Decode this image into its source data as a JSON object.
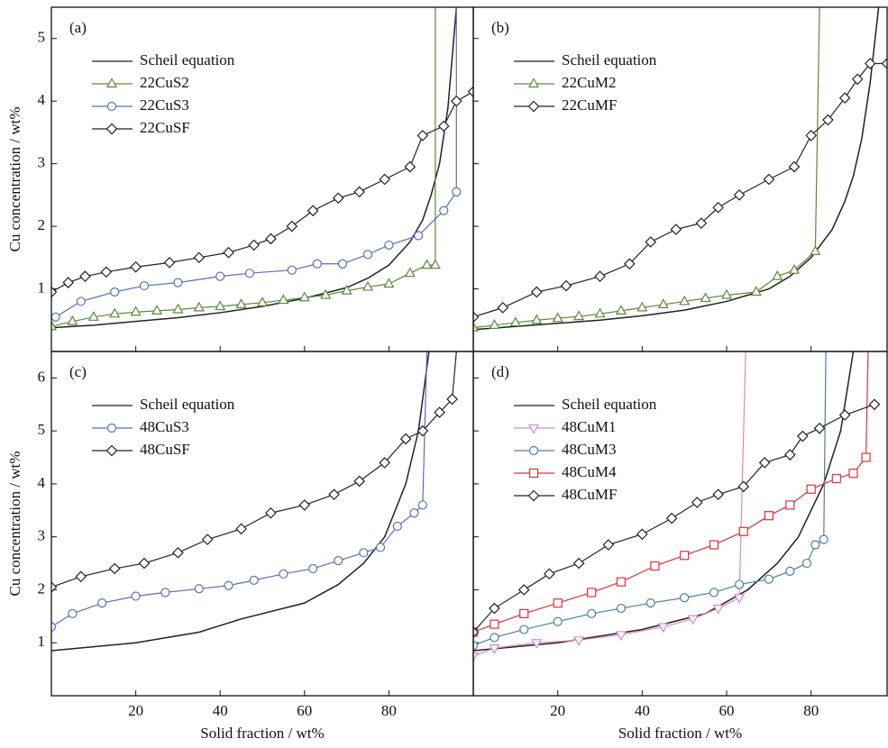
{
  "chart_data": [
    {
      "type": "line",
      "label": "(a)",
      "ylabel": "Cu concentration / wt%",
      "xlim": [
        0,
        100
      ],
      "ylim": [
        0,
        5.5
      ],
      "xticks": [
        20,
        40,
        60,
        80
      ],
      "yticks": [
        1,
        2,
        3,
        4,
        5
      ],
      "series": [
        {
          "name": "Scheil equation",
          "color": "#222222",
          "x": [
            0,
            10,
            20,
            30,
            40,
            50,
            60,
            70,
            75,
            80,
            85,
            88,
            90,
            92,
            94,
            95,
            96
          ],
          "values": [
            0.38,
            0.42,
            0.48,
            0.54,
            0.62,
            0.72,
            0.85,
            1.02,
            1.17,
            1.38,
            1.75,
            2.1,
            2.5,
            3.0,
            3.9,
            4.7,
            5.5
          ]
        },
        {
          "name": "22CuS2",
          "color": "#5a8a3a",
          "marker": "triangle",
          "x": [
            0,
            5,
            10,
            15,
            20,
            25,
            30,
            35,
            40,
            45,
            50,
            55,
            60,
            65,
            70,
            75,
            80,
            85,
            89,
            91,
            91
          ],
          "values": [
            0.4,
            0.48,
            0.55,
            0.6,
            0.63,
            0.65,
            0.67,
            0.7,
            0.72,
            0.75,
            0.78,
            0.82,
            0.86,
            0.9,
            0.97,
            1.03,
            1.08,
            1.25,
            1.38,
            1.38,
            5.5
          ]
        },
        {
          "name": "22CuS3",
          "color": "#5b6fb5",
          "marker": "circle",
          "x": [
            1,
            7,
            15,
            22,
            30,
            40,
            47,
            57,
            63,
            69,
            75,
            80,
            87,
            93,
            96,
            96
          ],
          "values": [
            0.55,
            0.8,
            0.95,
            1.05,
            1.1,
            1.2,
            1.25,
            1.3,
            1.4,
            1.4,
            1.55,
            1.7,
            1.85,
            2.25,
            2.55,
            5.5
          ]
        },
        {
          "name": "22CuSF",
          "color": "#222222",
          "marker": "diamond",
          "x": [
            0,
            4,
            8,
            13,
            20,
            28,
            35,
            42,
            48,
            52,
            57,
            62,
            68,
            73,
            79,
            85,
            88,
            93,
            96,
            100
          ],
          "values": [
            0.95,
            1.1,
            1.2,
            1.27,
            1.35,
            1.42,
            1.5,
            1.58,
            1.7,
            1.8,
            2.0,
            2.25,
            2.45,
            2.55,
            2.75,
            2.95,
            3.45,
            3.6,
            4.0,
            4.15
          ]
        }
      ]
    },
    {
      "type": "line",
      "label": "(b)",
      "xlim": [
        0,
        98
      ],
      "ylim": [
        0,
        5.5
      ],
      "xticks": [
        20,
        40,
        60,
        80
      ],
      "yticks": [
        1,
        2,
        3,
        4,
        5
      ],
      "series": [
        {
          "name": "Scheil equation",
          "color": "#222222",
          "x": [
            0,
            10,
            20,
            30,
            40,
            50,
            60,
            65,
            70,
            75,
            80,
            85,
            88,
            90,
            92,
            94,
            96
          ],
          "values": [
            0.35,
            0.4,
            0.45,
            0.5,
            0.57,
            0.66,
            0.8,
            0.9,
            1.0,
            1.2,
            1.5,
            1.95,
            2.4,
            2.8,
            3.4,
            4.3,
            5.5
          ]
        },
        {
          "name": "22CuM2",
          "color": "#5a8a3a",
          "marker": "triangle",
          "x": [
            0,
            5,
            10,
            15,
            20,
            25,
            30,
            35,
            40,
            45,
            50,
            55,
            60,
            67,
            72,
            76,
            81,
            82
          ],
          "values": [
            0.38,
            0.42,
            0.46,
            0.5,
            0.53,
            0.56,
            0.6,
            0.65,
            0.7,
            0.75,
            0.8,
            0.85,
            0.9,
            0.95,
            1.2,
            1.3,
            1.6,
            5.5
          ]
        },
        {
          "name": "22CuMF",
          "color": "#222222",
          "marker": "diamond",
          "x": [
            0,
            7,
            15,
            22,
            30,
            37,
            42,
            48,
            54,
            58,
            63,
            70,
            76,
            80,
            84,
            88,
            91,
            94,
            98
          ],
          "values": [
            0.55,
            0.7,
            0.95,
            1.05,
            1.2,
            1.4,
            1.75,
            1.95,
            2.05,
            2.3,
            2.5,
            2.75,
            2.95,
            3.45,
            3.7,
            4.05,
            4.35,
            4.6,
            4.6
          ]
        }
      ]
    },
    {
      "type": "line",
      "label": "(c)",
      "ylabel": "Cu concentration / wt%",
      "xlabel": "Solid fraction / wt%",
      "xlim": [
        0,
        100
      ],
      "ylim": [
        0,
        6.5
      ],
      "xticks": [
        20,
        40,
        60,
        80
      ],
      "yticks": [
        1,
        2,
        3,
        4,
        5,
        6
      ],
      "series": [
        {
          "name": "Scheil equation",
          "color": "#222222",
          "x": [
            0,
            20,
            35,
            45,
            60,
            68,
            74,
            79,
            84,
            87,
            89.5
          ],
          "values": [
            0.85,
            1.0,
            1.2,
            1.45,
            1.75,
            2.1,
            2.5,
            3.0,
            4.0,
            5.0,
            6.5
          ]
        },
        {
          "name": "48CuS3",
          "color": "#5b6fb5",
          "marker": "circle",
          "x": [
            0,
            5,
            12,
            20,
            27,
            35,
            42,
            48,
            55,
            62,
            68,
            74,
            78,
            82,
            86,
            88,
            89
          ],
          "values": [
            1.3,
            1.55,
            1.75,
            1.88,
            1.95,
            2.02,
            2.08,
            2.18,
            2.3,
            2.4,
            2.55,
            2.7,
            2.8,
            3.2,
            3.45,
            3.6,
            6.5
          ]
        },
        {
          "name": "48CuSF",
          "color": "#222222",
          "marker": "diamond",
          "x": [
            0,
            7,
            15,
            22,
            30,
            37,
            45,
            52,
            60,
            67,
            73,
            79,
            84,
            88,
            92,
            95,
            96
          ],
          "values": [
            2.05,
            2.25,
            2.4,
            2.5,
            2.7,
            2.95,
            3.15,
            3.45,
            3.6,
            3.8,
            4.05,
            4.4,
            4.85,
            5.0,
            5.35,
            5.6,
            6.5
          ]
        }
      ]
    },
    {
      "type": "line",
      "label": "(d)",
      "xlabel": "Solid fraction / wt%",
      "xlim": [
        0,
        98
      ],
      "ylim": [
        0,
        6.5
      ],
      "xticks": [
        20,
        40,
        60,
        80
      ],
      "yticks": [
        1,
        2,
        3,
        4,
        5,
        6
      ],
      "series": [
        {
          "name": "Scheil equation",
          "color": "#222222",
          "x": [
            0,
            20,
            40,
            55,
            65,
            72,
            77,
            83,
            87,
            90
          ],
          "values": [
            0.85,
            1.0,
            1.25,
            1.55,
            2.0,
            2.5,
            3.0,
            4.0,
            5.0,
            6.5
          ]
        },
        {
          "name": "48CuM1",
          "color": "#d98ac0",
          "marker": "triangle-down",
          "x": [
            0,
            5,
            15,
            25,
            35,
            45,
            52,
            58,
            63,
            64.5
          ],
          "values": [
            0.75,
            0.9,
            1.0,
            1.05,
            1.15,
            1.3,
            1.45,
            1.65,
            1.85,
            6.5
          ]
        },
        {
          "name": "48CuM3",
          "color": "#4a7fa0",
          "marker": "circle",
          "x": [
            0,
            5,
            12,
            20,
            28,
            35,
            42,
            50,
            57,
            63,
            70,
            75,
            79,
            81,
            83,
            83.5
          ],
          "values": [
            0.95,
            1.1,
            1.25,
            1.4,
            1.55,
            1.65,
            1.75,
            1.85,
            1.95,
            2.1,
            2.2,
            2.35,
            2.5,
            2.85,
            2.95,
            6.5
          ]
        },
        {
          "name": "48CuM4",
          "color": "#e0303a",
          "marker": "square",
          "x": [
            0,
            5,
            12,
            20,
            28,
            35,
            43,
            50,
            57,
            64,
            70,
            75,
            80,
            86,
            90,
            93,
            93.5
          ],
          "values": [
            1.2,
            1.35,
            1.55,
            1.75,
            1.95,
            2.15,
            2.45,
            2.65,
            2.85,
            3.1,
            3.4,
            3.6,
            3.9,
            4.1,
            4.2,
            4.5,
            6.5
          ]
        },
        {
          "name": "48CuMF",
          "color": "#222222",
          "marker": "diamond",
          "x": [
            0,
            5,
            12,
            18,
            25,
            32,
            40,
            47,
            53,
            58,
            64,
            69,
            75,
            78,
            82,
            88,
            95
          ],
          "values": [
            1.2,
            1.65,
            2.0,
            2.3,
            2.5,
            2.85,
            3.05,
            3.35,
            3.65,
            3.8,
            3.95,
            4.4,
            4.55,
            4.9,
            5.05,
            5.3,
            5.5
          ]
        }
      ]
    }
  ]
}
